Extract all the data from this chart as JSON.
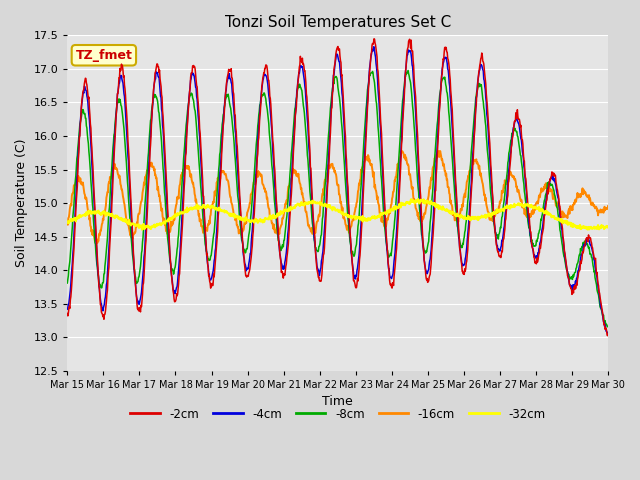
{
  "title": "Tonzi Soil Temperatures Set C",
  "xlabel": "Time",
  "ylabel": "Soil Temperature (C)",
  "ylim": [
    12.5,
    17.5
  ],
  "series_colors": {
    "-2cm": "#dd0000",
    "-4cm": "#0000dd",
    "-8cm": "#00aa00",
    "-16cm": "#ff8800",
    "-32cm": "#ffff00"
  },
  "annotation_label": "TZ_fmet",
  "annotation_color": "#cc0000",
  "annotation_bg": "#ffffcc",
  "annotation_border": "#ccaa00",
  "bg_color": "#e5e5e5",
  "grid_color": "#ffffff",
  "x_tick_labels": [
    "Mar 15",
    "Mar 16",
    "Mar 17",
    "Mar 18",
    "Mar 19",
    "Mar 20",
    "Mar 21",
    "Mar 22",
    "Mar 23",
    "Mar 24",
    "Mar 25",
    "Mar 26",
    "Mar 27",
    "Mar 28",
    "Mar 29",
    "Mar 30"
  ],
  "figsize": [
    6.4,
    4.8
  ],
  "dpi": 100
}
